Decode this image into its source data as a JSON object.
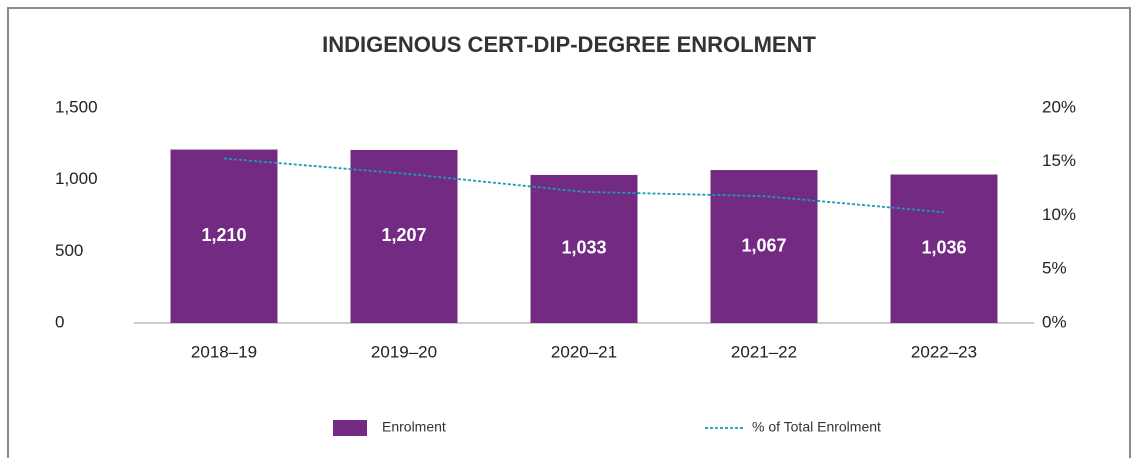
{
  "chart_data": {
    "type": "bar",
    "title": "INDIGENOUS CERT-DIP-DEGREE ENROLMENT",
    "categories": [
      "2018–19",
      "2019–20",
      "2020–21",
      "2021–22",
      "2022–23"
    ],
    "series": [
      {
        "name": "Enrolment",
        "type": "bar",
        "color": "#722a82",
        "values": [
          1210,
          1207,
          1033,
          1067,
          1036
        ],
        "value_labels": [
          "1,210",
          "1,207",
          "1,033",
          "1,067",
          "1,036"
        ]
      },
      {
        "name": "% of Total Enrolment",
        "type": "line",
        "axis": "y2",
        "color": "#1a9bb8",
        "values": [
          15.3,
          13.9,
          12.2,
          11.8,
          10.3
        ]
      }
    ],
    "ylim": [
      0,
      1500
    ],
    "yticks": [
      0,
      500,
      {
        "value": 1000,
        "label": "1,000"
      },
      {
        "value": 1500,
        "label": "1,500"
      }
    ],
    "y2lim": [
      0,
      20
    ],
    "y2ticks": [
      {
        "value": 0,
        "label": "0%"
      },
      {
        "value": 5,
        "label": "5%"
      },
      {
        "value": 10,
        "label": "10%"
      },
      {
        "value": 15,
        "label": "15%"
      },
      {
        "value": 20,
        "label": "20%"
      }
    ],
    "legend": "bottom"
  }
}
